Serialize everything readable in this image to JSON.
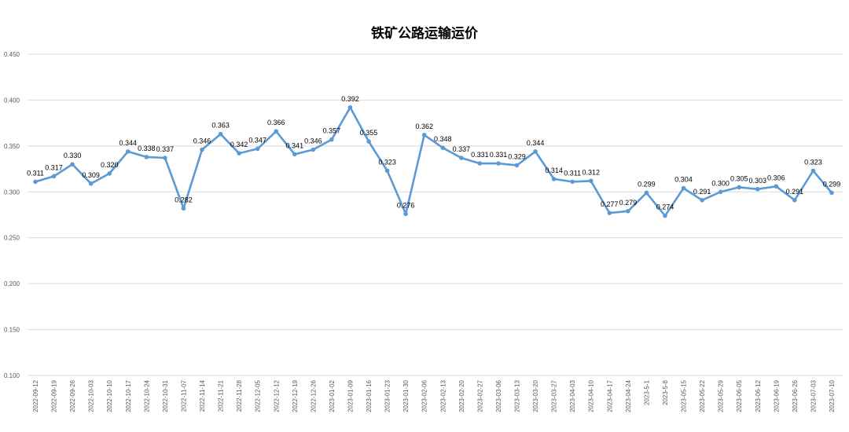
{
  "chart_data": {
    "type": "line",
    "title": "铁矿公路运输运价",
    "xlabel": "",
    "ylabel": "",
    "ylim": [
      0.1,
      0.45
    ],
    "yticks": [
      "0.100",
      "0.150",
      "0.200",
      "0.250",
      "0.300",
      "0.350",
      "0.400",
      "0.450"
    ],
    "grid": true,
    "legend": "none",
    "line_color": "#5B9BD5",
    "grid_color": "#D9D9D9",
    "categories": [
      "2022-09-12",
      "2022-09-19",
      "2022-09-26",
      "2022-10-03",
      "2022-10-10",
      "2022-10-17",
      "2022-10-24",
      "2022-10-31",
      "2022-11-07",
      "2022-11-14",
      "2022-11-21",
      "2022-11-28",
      "2022-12-05",
      "2022-12-12",
      "2022-12-19",
      "2022-12-26",
      "2023-01-02",
      "2023-01-09",
      "2023-01-16",
      "2023-01-23",
      "2023-01-30",
      "2023-02-06",
      "2023-02-13",
      "2023-02-20",
      "2023-02-27",
      "2023-03-06",
      "2023-03-13",
      "2023-03-20",
      "2023-03-27",
      "2023-04-03",
      "2023-04-10",
      "2023-04-17",
      "2023-04-24",
      "2023-5-1",
      "2023-5-8",
      "2023-05-15",
      "2023-05-22",
      "2023-05-29",
      "2023-06-05",
      "2023-06-12",
      "2023-06-19",
      "2023-06-26",
      "2023-07-03",
      "2023-07-10"
    ],
    "series": [
      {
        "values": [
          0.311,
          0.317,
          0.33,
          0.309,
          0.32,
          0.344,
          0.338,
          0.337,
          0.282,
          0.346,
          0.363,
          0.342,
          0.347,
          0.366,
          0.341,
          0.346,
          0.357,
          0.392,
          0.355,
          0.323,
          0.276,
          0.362,
          0.348,
          0.337,
          0.331,
          0.331,
          0.329,
          0.344,
          0.314,
          0.311,
          0.312,
          0.277,
          0.279,
          0.299,
          0.274,
          0.304,
          0.291,
          0.3,
          0.305,
          0.303,
          0.306,
          0.291,
          0.323,
          0.299
        ],
        "labels": [
          "0.311",
          "0.317",
          "0.330",
          "0.309",
          "0.320",
          "0.344",
          "0.338",
          "0.337",
          "0.282",
          "0.346",
          "0.363",
          "0.342",
          "0.347",
          "0.366",
          "0.341",
          "0.346",
          "0.357",
          "0.392",
          "0.355",
          "0.323",
          "0.276",
          "0.362",
          "0.348",
          "0.337",
          "0.331",
          "0.331",
          "0.329",
          "0.344",
          "0.314",
          "0.311",
          "0.312",
          "0.277",
          "0.279",
          "0.299",
          "0.274",
          "0.304",
          "0.291",
          "0.300",
          "0.305",
          "0.303",
          "0.306",
          "0.291",
          "0.323",
          "0.299"
        ]
      }
    ]
  }
}
